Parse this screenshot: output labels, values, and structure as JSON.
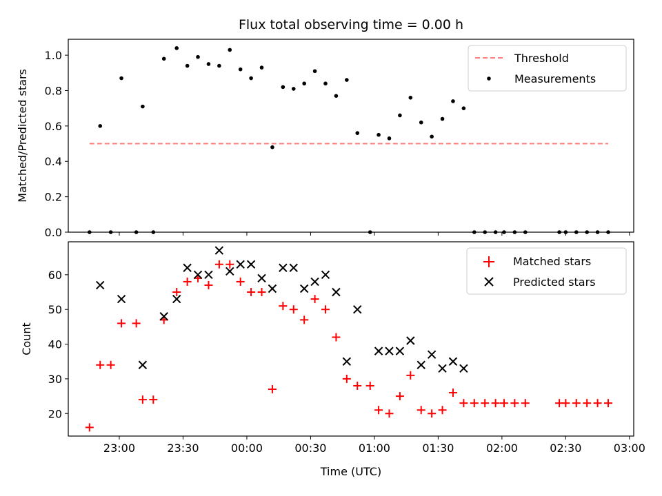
{
  "chart_data": [
    {
      "type": "scatter",
      "title": "Flux total observing time = 0.00 h",
      "xlabel": "",
      "ylabel": "Matched/Predicted stars",
      "ylim": [
        0,
        1.09
      ],
      "yticks": [
        "0.0",
        "0.2",
        "0.4",
        "0.6",
        "0.8",
        "1.0"
      ],
      "legend_position": "top-right",
      "threshold": {
        "name": "Threshold",
        "value": 0.5,
        "x_start": "22:46",
        "x_end": "02:50",
        "color": "#ff7f7f",
        "style": "dashed"
      },
      "series": [
        {
          "name": "Measurements",
          "color": "#000000",
          "marker": "dot",
          "points": [
            [
              "22:46",
              0.0
            ],
            [
              "22:51",
              0.6
            ],
            [
              "22:56",
              0.0
            ],
            [
              "23:01",
              0.87
            ],
            [
              "23:08",
              0.0
            ],
            [
              "23:11",
              0.71
            ],
            [
              "23:16",
              0.0
            ],
            [
              "23:21",
              0.98
            ],
            [
              "23:27",
              1.04
            ],
            [
              "23:32",
              0.94
            ],
            [
              "23:37",
              0.99
            ],
            [
              "23:42",
              0.95
            ],
            [
              "23:47",
              0.94
            ],
            [
              "23:52",
              1.03
            ],
            [
              "23:57",
              0.92
            ],
            [
              "00:02",
              0.87
            ],
            [
              "00:07",
              0.93
            ],
            [
              "00:12",
              0.48
            ],
            [
              "00:17",
              0.82
            ],
            [
              "00:22",
              0.81
            ],
            [
              "00:27",
              0.84
            ],
            [
              "00:32",
              0.91
            ],
            [
              "00:37",
              0.84
            ],
            [
              "00:42",
              0.77
            ],
            [
              "00:47",
              0.86
            ],
            [
              "00:52",
              0.56
            ],
            [
              "00:58",
              0.0
            ],
            [
              "01:02",
              0.55
            ],
            [
              "01:07",
              0.53
            ],
            [
              "01:12",
              0.66
            ],
            [
              "01:17",
              0.76
            ],
            [
              "01:22",
              0.62
            ],
            [
              "01:27",
              0.54
            ],
            [
              "01:32",
              0.64
            ],
            [
              "01:37",
              0.74
            ],
            [
              "01:42",
              0.7
            ],
            [
              "01:47",
              0.0
            ],
            [
              "01:52",
              0.0
            ],
            [
              "01:57",
              0.0
            ],
            [
              "02:01",
              0.0
            ],
            [
              "02:06",
              0.0
            ],
            [
              "02:11",
              0.0
            ],
            [
              "02:27",
              0.0
            ],
            [
              "02:30",
              0.0
            ],
            [
              "02:35",
              0.0
            ],
            [
              "02:40",
              0.0
            ],
            [
              "02:45",
              0.0
            ],
            [
              "02:50",
              0.0
            ]
          ]
        }
      ]
    },
    {
      "type": "scatter",
      "title": "",
      "xlabel": "Time (UTC)",
      "ylabel": "Count",
      "ylim": [
        13.5,
        69.5
      ],
      "yticks": [
        "20",
        "30",
        "40",
        "50",
        "60"
      ],
      "xticks": [
        "23:00",
        "23:30",
        "00:00",
        "00:30",
        "01:00",
        "01:30",
        "02:00",
        "02:30",
        "03:00"
      ],
      "legend_position": "top-right",
      "series": [
        {
          "name": "Matched stars",
          "color": "#ff0000",
          "marker": "plus",
          "points": [
            [
              "22:46",
              16
            ],
            [
              "22:51",
              34
            ],
            [
              "22:56",
              34
            ],
            [
              "23:01",
              46
            ],
            [
              "23:08",
              46
            ],
            [
              "23:11",
              24
            ],
            [
              "23:16",
              24
            ],
            [
              "23:21",
              47
            ],
            [
              "23:27",
              55
            ],
            [
              "23:32",
              58
            ],
            [
              "23:37",
              59
            ],
            [
              "23:42",
              57
            ],
            [
              "23:47",
              63
            ],
            [
              "23:52",
              63
            ],
            [
              "23:57",
              58
            ],
            [
              "00:02",
              55
            ],
            [
              "00:07",
              55
            ],
            [
              "00:12",
              27
            ],
            [
              "00:17",
              51
            ],
            [
              "00:22",
              50
            ],
            [
              "00:27",
              47
            ],
            [
              "00:32",
              53
            ],
            [
              "00:37",
              50
            ],
            [
              "00:42",
              42
            ],
            [
              "00:47",
              30
            ],
            [
              "00:52",
              28
            ],
            [
              "00:58",
              28
            ],
            [
              "01:02",
              21
            ],
            [
              "01:07",
              20
            ],
            [
              "01:12",
              25
            ],
            [
              "01:17",
              31
            ],
            [
              "01:22",
              21
            ],
            [
              "01:27",
              20
            ],
            [
              "01:32",
              21
            ],
            [
              "01:37",
              26
            ],
            [
              "01:42",
              23
            ],
            [
              "01:47",
              23
            ],
            [
              "01:52",
              23
            ],
            [
              "01:57",
              23
            ],
            [
              "02:01",
              23
            ],
            [
              "02:06",
              23
            ],
            [
              "02:11",
              23
            ],
            [
              "02:27",
              23
            ],
            [
              "02:30",
              23
            ],
            [
              "02:35",
              23
            ],
            [
              "02:40",
              23
            ],
            [
              "02:45",
              23
            ],
            [
              "02:50",
              23
            ]
          ]
        },
        {
          "name": "Predicted stars",
          "color": "#000000",
          "marker": "x",
          "points": [
            [
              "22:51",
              57
            ],
            [
              "23:01",
              53
            ],
            [
              "23:11",
              34
            ],
            [
              "23:21",
              48
            ],
            [
              "23:27",
              53
            ],
            [
              "23:32",
              62
            ],
            [
              "23:37",
              60
            ],
            [
              "23:42",
              60
            ],
            [
              "23:47",
              67
            ],
            [
              "23:52",
              61
            ],
            [
              "23:57",
              63
            ],
            [
              "00:02",
              63
            ],
            [
              "00:07",
              59
            ],
            [
              "00:12",
              56
            ],
            [
              "00:17",
              62
            ],
            [
              "00:22",
              62
            ],
            [
              "00:27",
              56
            ],
            [
              "00:32",
              58
            ],
            [
              "00:37",
              60
            ],
            [
              "00:42",
              55
            ],
            [
              "00:47",
              35
            ],
            [
              "00:52",
              50
            ],
            [
              "01:02",
              38
            ],
            [
              "01:07",
              38
            ],
            [
              "01:12",
              38
            ],
            [
              "01:17",
              41
            ],
            [
              "01:22",
              34
            ],
            [
              "01:27",
              37
            ],
            [
              "01:32",
              33
            ],
            [
              "01:37",
              35
            ],
            [
              "01:42",
              33
            ]
          ]
        }
      ]
    }
  ]
}
